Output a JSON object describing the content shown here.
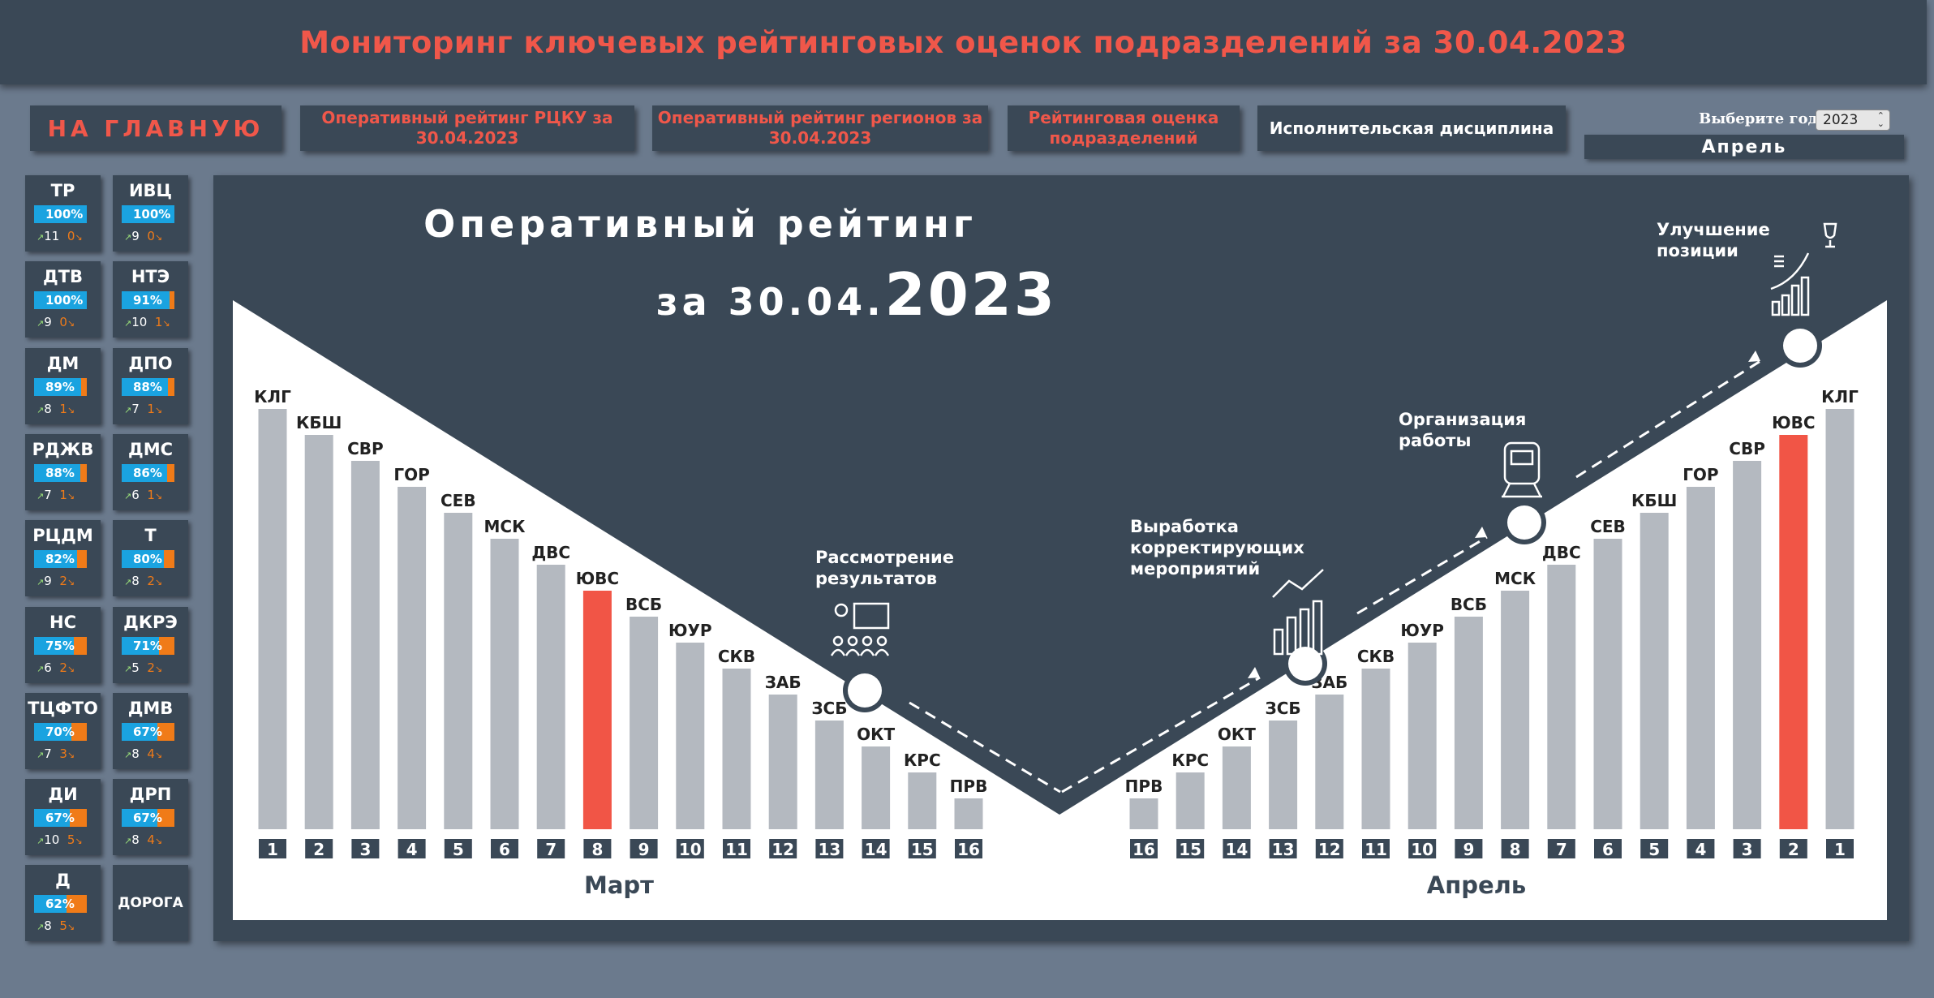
{
  "header": {
    "title": "Мониторинг ключевых рейтинговых оценок подразделений за 30.04.2023"
  },
  "nav": {
    "home": "НА ГЛАВНУЮ",
    "rcku": "Оперативный рейтинг РЦКУ за 30.04.2023",
    "regions": "Оперативный рейтинг регионов за 30.04.2023",
    "units": "Рейтинговая оценка подразделений",
    "discipline": "Исполнительская дисциплина"
  },
  "year_picker": {
    "label": "Выберите год",
    "value": "2023",
    "month": "Апрель"
  },
  "tiles": [
    {
      "name": "ТР",
      "pct": "100%",
      "value": 1.0,
      "up": "11",
      "down": "0"
    },
    {
      "name": "ИВЦ",
      "pct": "100%",
      "value": 1.0,
      "up": "9",
      "down": "0"
    },
    {
      "name": "ДТВ",
      "pct": "100%",
      "value": 1.0,
      "up": "9",
      "down": "0"
    },
    {
      "name": "НТЭ",
      "pct": "91%",
      "value": 0.91,
      "up": "10",
      "down": "1"
    },
    {
      "name": "ДМ",
      "pct": "89%",
      "value": 0.89,
      "up": "8",
      "down": "1"
    },
    {
      "name": "ДПО",
      "pct": "88%",
      "value": 0.88,
      "up": "7",
      "down": "1"
    },
    {
      "name": "РДЖВ",
      "pct": "88%",
      "value": 0.88,
      "up": "7",
      "down": "1"
    },
    {
      "name": "ДМС",
      "pct": "86%",
      "value": 0.86,
      "up": "6",
      "down": "1"
    },
    {
      "name": "РЦДМ",
      "pct": "82%",
      "value": 0.82,
      "up": "9",
      "down": "2"
    },
    {
      "name": "Т",
      "pct": "80%",
      "value": 0.8,
      "up": "8",
      "down": "2"
    },
    {
      "name": "НС",
      "pct": "75%",
      "value": 0.75,
      "up": "6",
      "down": "2"
    },
    {
      "name": "ДКРЭ",
      "pct": "71%",
      "value": 0.71,
      "up": "5",
      "down": "2"
    },
    {
      "name": "ТЦФТО",
      "pct": "70%",
      "value": 0.7,
      "up": "7",
      "down": "3"
    },
    {
      "name": "ДМВ",
      "pct": "67%",
      "value": 0.67,
      "up": "8",
      "down": "4"
    },
    {
      "name": "ДИ",
      "pct": "67%",
      "value": 0.67,
      "up": "10",
      "down": "5"
    },
    {
      "name": "ДРП",
      "pct": "67%",
      "value": 0.67,
      "up": "8",
      "down": "4"
    },
    {
      "name": "Д",
      "pct": "62%",
      "value": 0.62,
      "up": "8",
      "down": "5"
    }
  ],
  "road_tile": "ДОРОГА",
  "infographic": {
    "title_line1": "Оперативный рейтинг",
    "title_line2_prefix": "за 30.04.",
    "title_line2_year": "2023",
    "step_results": [
      "Рассмотрение",
      "результатов"
    ],
    "step_measures": [
      "Выработка",
      "корректирующих",
      "мероприятий"
    ],
    "step_organization": [
      "Организация",
      "работы"
    ],
    "step_improvement": [
      "Улучшение",
      "позиции"
    ]
  },
  "chart_data": [
    {
      "type": "bar",
      "title": "Март",
      "categories": [
        "КЛГ",
        "КБШ",
        "СВР",
        "ГОР",
        "СЕВ",
        "МСК",
        "ДВС",
        "ЮВС",
        "ВСБ",
        "ЮУР",
        "СКВ",
        "ЗАБ",
        "ЗСБ",
        "ОКТ",
        "КРС",
        "ПРВ"
      ],
      "ranks": [
        "1",
        "2",
        "3",
        "4",
        "5",
        "6",
        "7",
        "8",
        "9",
        "10",
        "11",
        "12",
        "13",
        "14",
        "15",
        "16"
      ],
      "values": [
        16,
        15,
        14,
        13,
        12,
        11,
        10,
        9,
        8,
        7,
        6,
        5,
        4,
        3,
        2,
        1
      ],
      "highlight": "ЮВС",
      "colors": {
        "bar": "#b4b9c0",
        "highlight": "#f15546"
      }
    },
    {
      "type": "bar",
      "title": "Апрель",
      "categories": [
        "ПРВ",
        "КРС",
        "ОКТ",
        "ЗСБ",
        "ЗАБ",
        "СКВ",
        "ЮУР",
        "ВСБ",
        "МСК",
        "ДВС",
        "СЕВ",
        "КБШ",
        "ГОР",
        "СВР",
        "ЮВС",
        "КЛГ"
      ],
      "ranks": [
        "16",
        "15",
        "14",
        "13",
        "12",
        "11",
        "10",
        "9",
        "8",
        "7",
        "6",
        "5",
        "4",
        "3",
        "2",
        "1"
      ],
      "values": [
        1,
        2,
        3,
        4,
        5,
        6,
        7,
        8,
        9,
        10,
        11,
        12,
        13,
        14,
        15,
        16
      ],
      "highlight": "ЮВС",
      "colors": {
        "bar": "#b4b9c0",
        "highlight": "#f15546"
      }
    }
  ]
}
